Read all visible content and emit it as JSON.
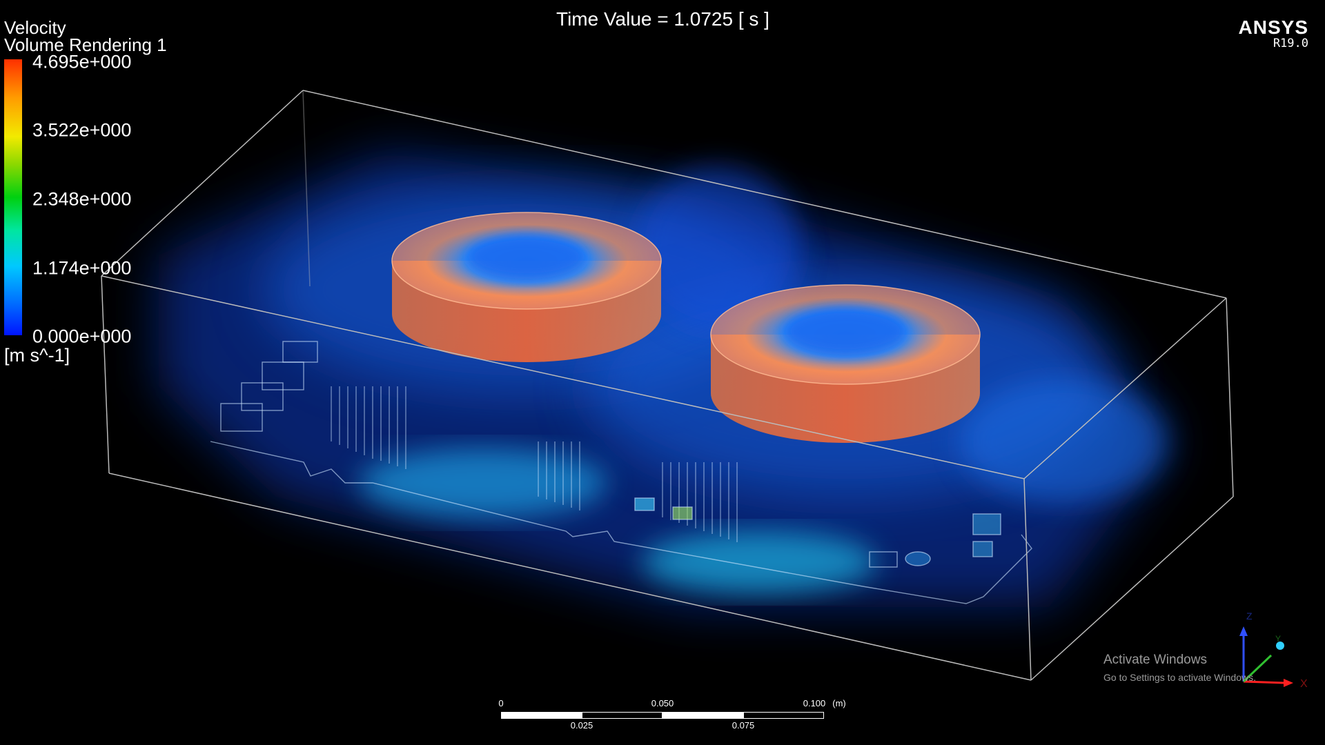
{
  "legend": {
    "variable": "Velocity",
    "object": "Volume Rendering 1",
    "ticks": [
      "4.695e+000",
      "3.522e+000",
      "2.348e+000",
      "1.174e+000",
      "0.000e+000"
    ],
    "unit": "[m s^-1]"
  },
  "time_label": "Time Value = 1.0725 [ s ]",
  "brand": {
    "name": "ANSYS",
    "version": "R19.0"
  },
  "scale_bar": {
    "top_labels": [
      "0",
      "0.050",
      "0.100"
    ],
    "unit": "(m)",
    "bottom_labels": [
      "0.025",
      "0.075"
    ]
  },
  "axes": {
    "x_label": "X",
    "z_label": "Z",
    "y_label": "Y"
  },
  "watermark": {
    "title": "Activate Windows",
    "subtitle": "Go to Settings to activate Windows."
  },
  "colors": {
    "bar_max": "#ff3000",
    "bar_mid": "#00d010",
    "bar_min": "#0014ff"
  }
}
